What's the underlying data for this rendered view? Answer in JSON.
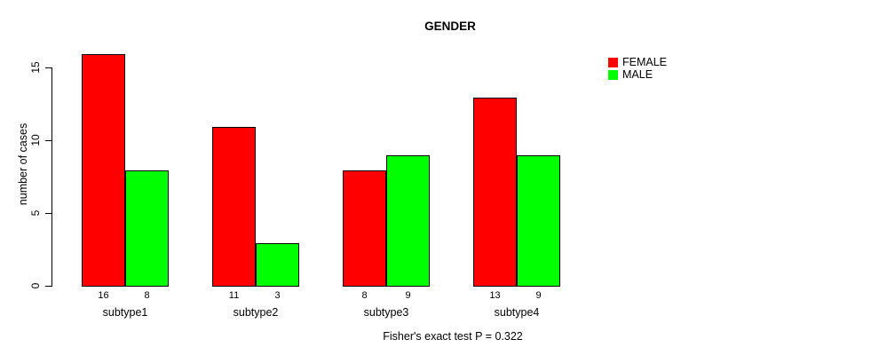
{
  "chart_data": {
    "type": "bar",
    "title": "GENDER",
    "ylabel": "number of cases",
    "xlabel": "Fisher's exact test P = 0.322",
    "categories": [
      "subtype1",
      "subtype2",
      "subtype3",
      "subtype4"
    ],
    "series": [
      {
        "name": "FEMALE",
        "color": "#ff0000",
        "values": [
          16,
          11,
          8,
          13
        ]
      },
      {
        "name": "MALE",
        "color": "#00ff00",
        "values": [
          8,
          3,
          9,
          9
        ]
      }
    ],
    "bar_value_labels": [
      [
        "16",
        "8"
      ],
      [
        "11",
        "3"
      ],
      [
        "8",
        "9"
      ],
      [
        "13",
        "9"
      ]
    ],
    "y_ticks": [
      0,
      5,
      10,
      15
    ],
    "ylim": [
      0,
      16
    ],
    "grid": false,
    "legend_position": "top-right",
    "background_color": "#ffffff",
    "axis_color": "#000000"
  }
}
